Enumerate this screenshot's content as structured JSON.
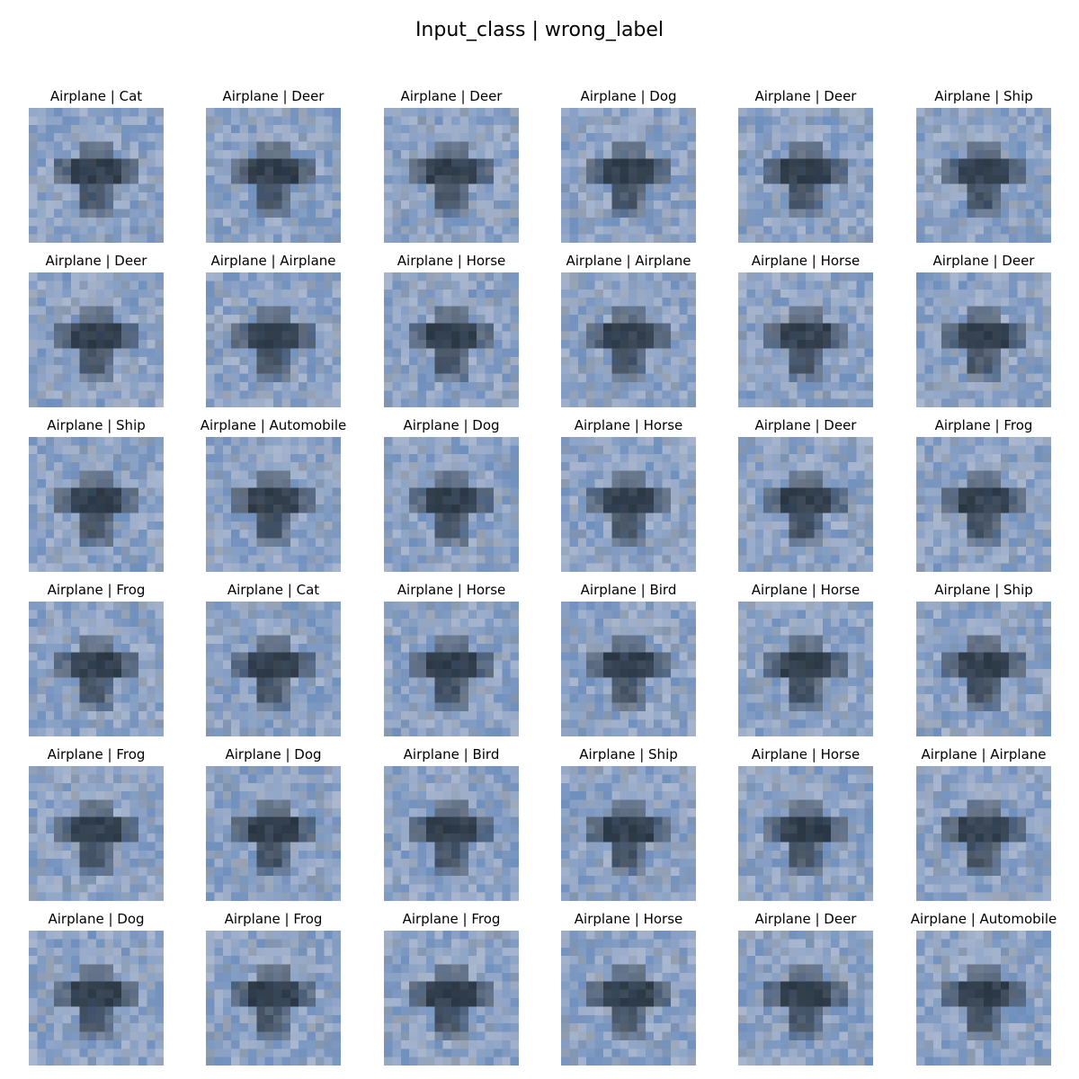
{
  "figure": {
    "title": "Input_class | wrong_label"
  },
  "colors": {
    "sky_light": "#aab7cf",
    "sky_blue": "#6f8fbd",
    "sky_grey": "#8e969f",
    "plane_dark": "#1f2a35"
  },
  "rows": 6,
  "cols": 6,
  "panels": [
    {
      "title": "Airplane | Cat"
    },
    {
      "title": "Airplane | Deer"
    },
    {
      "title": "Airplane | Deer"
    },
    {
      "title": "Airplane | Dog"
    },
    {
      "title": "Airplane | Deer"
    },
    {
      "title": "Airplane | Ship"
    },
    {
      "title": "Airplane | Deer"
    },
    {
      "title": "Airplane | Airplane"
    },
    {
      "title": "Airplane | Horse"
    },
    {
      "title": "Airplane | Airplane"
    },
    {
      "title": "Airplane | Horse"
    },
    {
      "title": "Airplane | Deer"
    },
    {
      "title": "Airplane | Ship"
    },
    {
      "title": "Airplane | Automobile"
    },
    {
      "title": "Airplane | Dog"
    },
    {
      "title": "Airplane | Horse"
    },
    {
      "title": "Airplane | Deer"
    },
    {
      "title": "Airplane | Frog"
    },
    {
      "title": "Airplane | Frog"
    },
    {
      "title": "Airplane | Cat"
    },
    {
      "title": "Airplane | Horse"
    },
    {
      "title": "Airplane | Bird"
    },
    {
      "title": "Airplane | Horse"
    },
    {
      "title": "Airplane | Ship"
    },
    {
      "title": "Airplane | Frog"
    },
    {
      "title": "Airplane | Dog"
    },
    {
      "title": "Airplane | Bird"
    },
    {
      "title": "Airplane | Ship"
    },
    {
      "title": "Airplane | Horse"
    },
    {
      "title": "Airplane | Airplane"
    },
    {
      "title": "Airplane | Dog"
    },
    {
      "title": "Airplane | Frog"
    },
    {
      "title": "Airplane | Frog"
    },
    {
      "title": "Airplane | Horse"
    },
    {
      "title": "Airplane | Deer"
    },
    {
      "title": "Airplane | Automobile"
    }
  ]
}
